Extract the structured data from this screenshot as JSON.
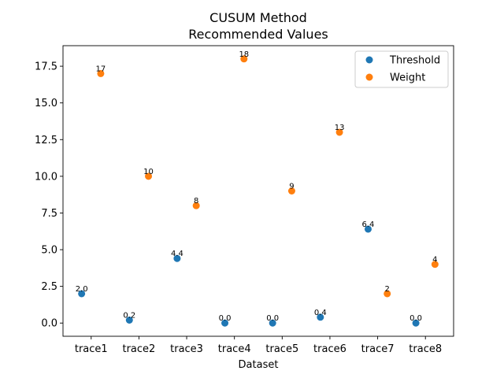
{
  "chart_data": {
    "type": "scatter",
    "title_line1": "CUSUM Method",
    "title_line2": "Recommended Values",
    "xlabel": "Dataset",
    "ylabel": "",
    "categories": [
      "trace1",
      "trace2",
      "trace3",
      "trace4",
      "trace5",
      "trace6",
      "trace7",
      "trace8"
    ],
    "ylim": [
      -0.9,
      18.9
    ],
    "yticks": [
      0.0,
      2.5,
      5.0,
      7.5,
      10.0,
      12.5,
      15.0,
      17.5
    ],
    "ytick_labels": [
      "0.0",
      "2.5",
      "5.0",
      "7.5",
      "10.0",
      "12.5",
      "15.0",
      "17.5"
    ],
    "grid": false,
    "legend_position": "top-right",
    "series": [
      {
        "name": "Threshold",
        "color": "#1f77b4",
        "x_offset": -0.2,
        "values": [
          2.0,
          0.2,
          4.4,
          0.0,
          0.0,
          0.4,
          6.4,
          0.0
        ],
        "labels": [
          "2.0",
          "0.2",
          "4.4",
          "0.0",
          "0.0",
          "0.4",
          "6.4",
          "0.0"
        ]
      },
      {
        "name": "Weight",
        "color": "#ff7f0e",
        "x_offset": 0.2,
        "values": [
          17,
          10,
          8,
          18,
          9,
          13,
          2,
          4
        ],
        "labels": [
          "17",
          "10",
          "8",
          "18",
          "9",
          "13",
          "2",
          "4"
        ]
      }
    ]
  }
}
